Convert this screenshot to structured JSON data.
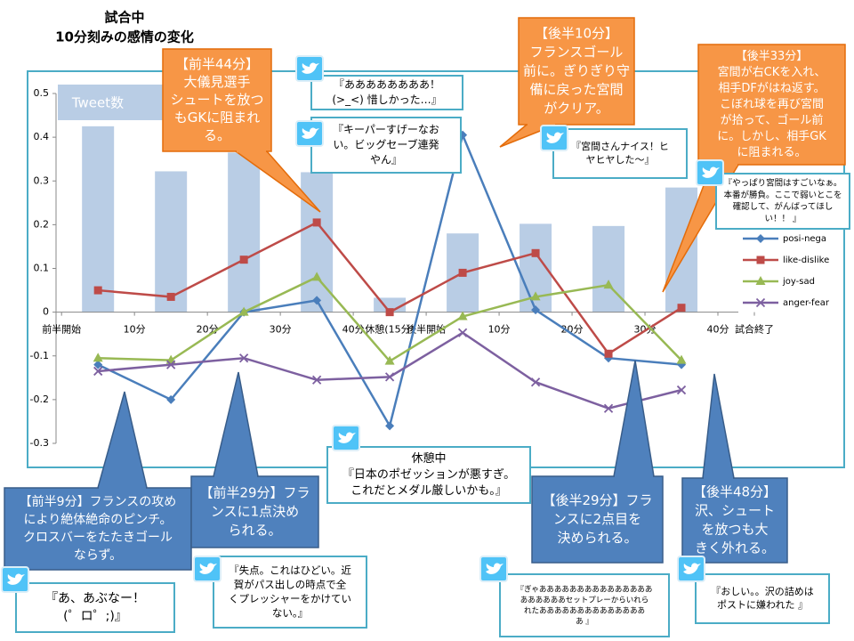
{
  "chart_data": {
    "type": "line",
    "title": "試合中",
    "subtitle": "10分刻みの感情の変化",
    "x": [
      5,
      15,
      25,
      35,
      45,
      55,
      65,
      75,
      85
    ],
    "xlim": [
      -1,
      95
    ],
    "xticks": [
      {
        "value": 0,
        "label": "前半開始"
      },
      {
        "value": 10,
        "label": "10分"
      },
      {
        "value": 20,
        "label": "20分"
      },
      {
        "value": 30,
        "label": "30分"
      },
      {
        "value": 40,
        "label": "40分"
      },
      {
        "value": 45,
        "label": "休憩(15分)"
      },
      {
        "value": 50,
        "label": "後半開始"
      },
      {
        "value": 60,
        "label": "10分"
      },
      {
        "value": 70,
        "label": "20分"
      },
      {
        "value": 80,
        "label": "30分"
      },
      {
        "value": 90,
        "label": "40分"
      },
      {
        "value": 95,
        "label": "試合終了"
      }
    ],
    "ylim": [
      -0.3,
      0.5
    ],
    "yticks": [
      -0.3,
      -0.2,
      -0.1,
      0,
      0.1,
      0.2,
      0.3,
      0.4,
      0.5
    ],
    "series": [
      {
        "name": "Tweet数",
        "type": "bar",
        "color": "#b9cde5",
        "values": [
          0.425,
          0.322,
          0.365,
          0.32,
          0.033,
          0.18,
          0.202,
          0.197,
          0.285
        ]
      },
      {
        "name": "posi-nega",
        "type": "line",
        "marker": "diamond",
        "color": "#4a7ebb",
        "values": [
          -0.12,
          -0.2,
          0,
          0.027,
          -0.26,
          0.405,
          0.005,
          -0.105,
          -0.12
        ]
      },
      {
        "name": "like-dislike",
        "type": "line",
        "marker": "square",
        "color": "#be4b48",
        "values": [
          0.05,
          0.035,
          0.12,
          0.205,
          0,
          0.09,
          0.135,
          -0.095,
          0.01
        ]
      },
      {
        "name": "joy-sad",
        "type": "line",
        "marker": "triangle",
        "color": "#98b954",
        "values": [
          -0.105,
          -0.11,
          0,
          0.08,
          -0.112,
          -0.01,
          0.035,
          0.062,
          -0.11
        ]
      },
      {
        "name": "anger-fear",
        "type": "line",
        "marker": "x",
        "color": "#7d60a0",
        "values": [
          -0.135,
          -0.12,
          -0.105,
          -0.155,
          -0.148,
          -0.047,
          -0.16,
          -0.22,
          -0.178
        ]
      }
    ],
    "callouts": [
      {
        "color": "#f79646",
        "lines": [
          "【前半44分】",
          "大儀見選手",
          "シュートを放つ",
          "もGKに阻まれ",
          "る。"
        ]
      },
      {
        "color": "#f79646",
        "lines": [
          "【後半10分】",
          "フランスゴール",
          "前に。ぎりぎり守",
          "備に戻った宮間",
          "がクリア。"
        ]
      },
      {
        "color": "#f79646",
        "lines": [
          "【後半33分】",
          "宮間が右CKを入れ、",
          "相手DFがはね返す。",
          "こぼれ球を再び宮間",
          "が拾って、ゴール前",
          "に。しかし、相手GK",
          "に阻まれる。"
        ]
      },
      {
        "color": "#4f81bd",
        "lines": [
          "【前半9分】フランスの攻め",
          "により絶体絶命のピンチ。",
          "クロスバーをたたきゴール",
          "ならず。"
        ]
      },
      {
        "color": "#4f81bd",
        "lines": [
          "【前半29分】フラ",
          "ンスに1点決め",
          "られる。"
        ]
      },
      {
        "color": "#4f81bd",
        "lines": [
          "【後半29分】フラ",
          "ンスに2点目を",
          "決められる。"
        ]
      },
      {
        "color": "#4f81bd",
        "lines": [
          "【後半48分】",
          "沢、シュート",
          "を放つも大",
          "きく外れる。"
        ]
      }
    ],
    "tweets": [
      {
        "lines": [
          "『ああああああああ！",
          "(>_<) 惜しかった…』"
        ]
      },
      {
        "lines": [
          "『キーパーすげーなお",
          "い。ビッグセーブ連発",
          "やん』"
        ]
      },
      {
        "lines": [
          "『宮間さんナイス！ヒ",
          "ヤヒヤした～』"
        ]
      },
      {
        "lines": [
          "『やっぱり宮間はすごいなぁ。",
          "本番が勝負。ここで弱いとこを",
          "確認して、がんばってほし",
          "い！！ 』"
        ]
      },
      {
        "heading": "休憩中",
        "lines": [
          "『日本のポゼッションが悪すぎ。",
          "これだとメダル厳しいかも。』"
        ]
      },
      {
        "lines": [
          "『あ、あぶなー！",
          "(゜ロ゜;)』"
        ]
      },
      {
        "lines": [
          "『失点。これはひどい。近",
          "賀がパス出しの時点で全",
          "くプレッシャーをかけてい",
          "ない。』"
        ]
      },
      {
        "lines": [
          "『ぎゃあああああああああああああああ",
          "ああああああセットプレーからいれら",
          "れたああああああああああああああ",
          "あ 』"
        ]
      },
      {
        "lines": [
          "『おしい。。沢の詰めは",
          "ポストに嫌われた 』"
        ]
      }
    ]
  }
}
